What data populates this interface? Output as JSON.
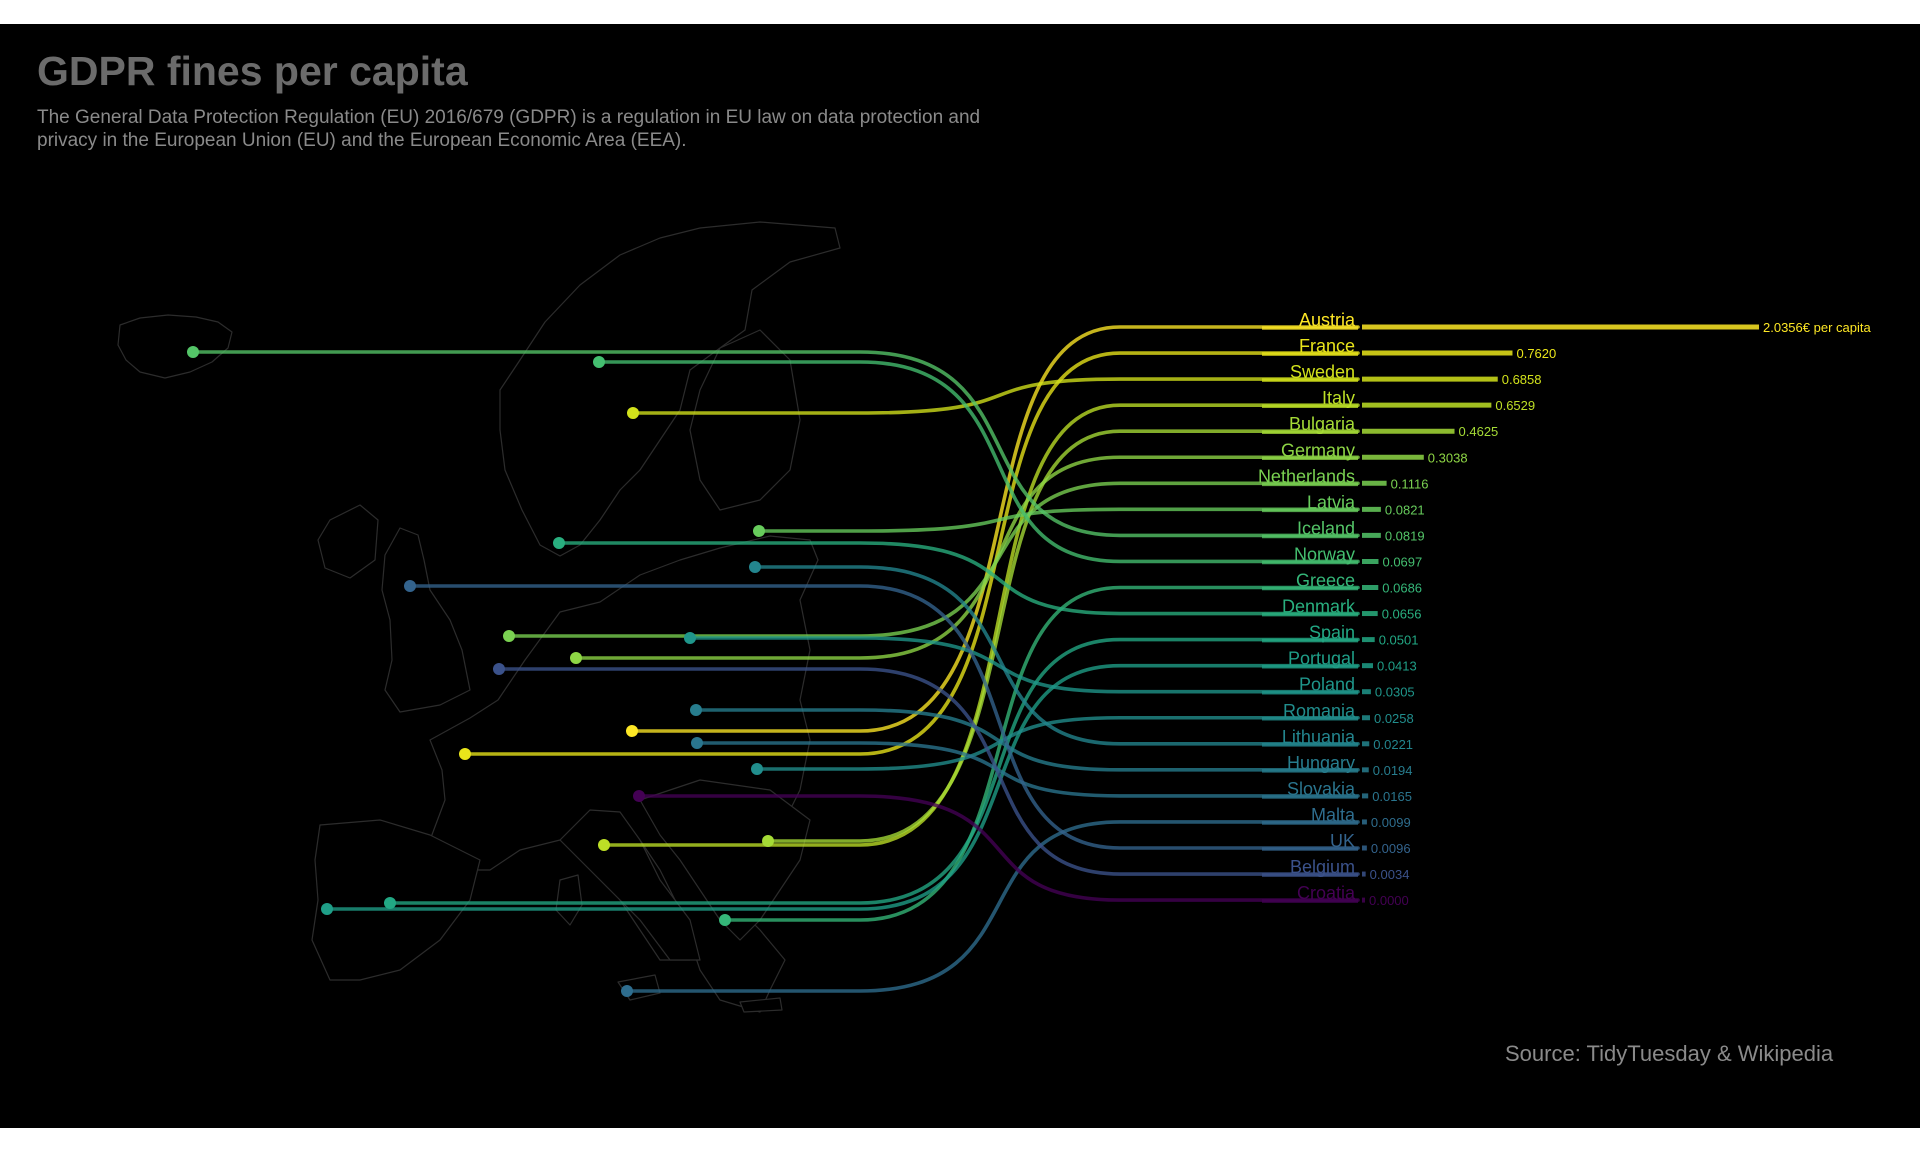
{
  "chart_data": {
    "type": "bump-map",
    "title": "GDPR fines per capita",
    "subtitle": "The General Data Protection Regulation (EU) 2016/679 (GDPR) is a regulation in EU law on data protection and privacy in the European Union (EU) and the European Economic Area (EEA).",
    "caption": "Source: TidyTuesday & Wikipedia",
    "value_suffix": "€ per capita",
    "countries": [
      {
        "name": "Austria",
        "value": 2.0356,
        "label": "2.0356€ per capita",
        "color": "#fde725"
      },
      {
        "name": "France",
        "value": 0.762,
        "label": "0.7620",
        "color": "#e9e51a"
      },
      {
        "name": "Sweden",
        "value": 0.6858,
        "label": "0.6858",
        "color": "#d2e21b"
      },
      {
        "name": "Italy",
        "value": 0.6529,
        "label": "0.6529",
        "color": "#bddf26"
      },
      {
        "name": "Bulgaria",
        "value": 0.4625,
        "label": "0.4625",
        "color": "#a5db36"
      },
      {
        "name": "Germany",
        "value": 0.3038,
        "label": "0.3038",
        "color": "#8ed645"
      },
      {
        "name": "Netherlands",
        "value": 0.1116,
        "label": "0.1116",
        "color": "#7ad151"
      },
      {
        "name": "Latvia",
        "value": 0.0821,
        "label": "0.0821",
        "color": "#67cc5c"
      },
      {
        "name": "Iceland",
        "value": 0.0819,
        "label": "0.0819",
        "color": "#54c568"
      },
      {
        "name": "Norway",
        "value": 0.0697,
        "label": "0.0697",
        "color": "#44bf70"
      },
      {
        "name": "Greece",
        "value": 0.0686,
        "label": "0.0686",
        "color": "#35b779"
      },
      {
        "name": "Denmark",
        "value": 0.0656,
        "label": "0.0656",
        "color": "#29af7f"
      },
      {
        "name": "Spain",
        "value": 0.0501,
        "label": "0.0501",
        "color": "#22a884"
      },
      {
        "name": "Portugal",
        "value": 0.0413,
        "label": "0.0413",
        "color": "#1f9f88"
      },
      {
        "name": "Poland",
        "value": 0.0305,
        "label": "0.0305",
        "color": "#1f968b"
      },
      {
        "name": "Romania",
        "value": 0.0258,
        "label": "0.0258",
        "color": "#218e8d"
      },
      {
        "name": "Lithuania",
        "value": 0.0221,
        "label": "0.0221",
        "color": "#23858e"
      },
      {
        "name": "Hungary",
        "value": 0.0194,
        "label": "0.0194",
        "color": "#277d8e"
      },
      {
        "name": "Slovakia",
        "value": 0.0165,
        "label": "0.0165",
        "color": "#2a758e"
      },
      {
        "name": "Malta",
        "value": 0.0099,
        "label": "0.0099",
        "color": "#2e6d8e"
      },
      {
        "name": "UK",
        "value": 0.0096,
        "label": "0.0096",
        "color": "#33638d"
      },
      {
        "name": "Belgium",
        "value": 0.0034,
        "label": "0.0034",
        "color": "#3b528b"
      },
      {
        "name": "Croatia",
        "value": 0.0,
        "label": "0.0000",
        "color": "#440154"
      }
    ]
  }
}
